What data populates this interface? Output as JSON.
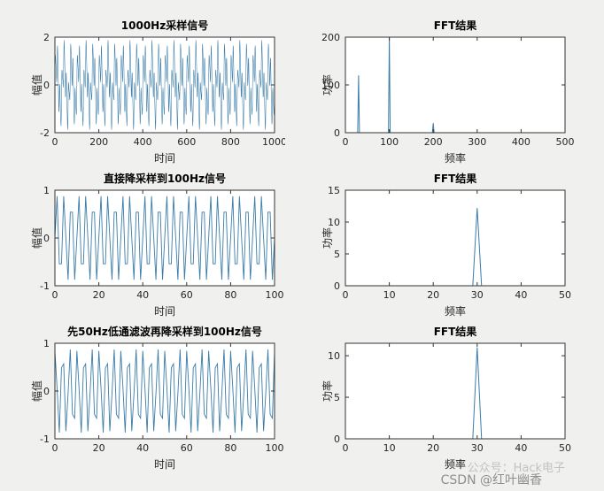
{
  "figure": {
    "background": "#f0f0ee",
    "plot_background": "#ffffff",
    "line_color": "#3a7ca8",
    "axis_color": "#333333",
    "tick_label_color": "#262626"
  },
  "watermark": {
    "line1": "公众号：Hack电子",
    "line2": "CSDN @红叶幽香"
  },
  "chart_data": [
    {
      "type": "line",
      "title": "1000Hz采样信号",
      "xlabel": "时间",
      "ylabel": "幅值",
      "xlim": [
        0,
        1000
      ],
      "ylim": [
        -2,
        2
      ],
      "xticks": [
        0,
        200,
        400,
        600,
        800,
        1000
      ],
      "yticks": [
        -2,
        0,
        2
      ],
      "grid": false,
      "signal": {
        "fs": 1000,
        "n": 1001,
        "components": [
          {
            "freq": 30,
            "amp": 1.0,
            "phase": 0
          },
          {
            "freq": 100,
            "amp": 0.8,
            "phase": 0
          },
          {
            "freq": 200,
            "amp": 0.2,
            "phase": 0
          }
        ]
      }
    },
    {
      "type": "spikes",
      "title": "FFT结果",
      "xlabel": "频率",
      "ylabel": "功率",
      "xlim": [
        0,
        500
      ],
      "ylim": [
        0,
        200
      ],
      "xticks": [
        0,
        100,
        200,
        300,
        400,
        500
      ],
      "yticks": [
        0,
        100,
        200
      ],
      "grid": false,
      "spike_halfwidth": 2,
      "spikes": [
        {
          "x": 30,
          "power": 120
        },
        {
          "x": 100,
          "power": 200
        },
        {
          "x": 200,
          "power": 20
        }
      ]
    },
    {
      "type": "line",
      "title": "直接降采样到100Hz信号",
      "xlabel": "时间",
      "ylabel": "幅值",
      "xlim": [
        0,
        100
      ],
      "ylim": [
        -1,
        1
      ],
      "xticks": [
        0,
        20,
        40,
        60,
        80,
        100
      ],
      "yticks": [
        -1,
        0,
        1
      ],
      "grid": false,
      "signal": {
        "fs": 100,
        "n": 101,
        "components": [
          {
            "freq": 30,
            "amp": 0.92,
            "phase": 0
          }
        ]
      }
    },
    {
      "type": "spikes",
      "title": "FFT结果",
      "xlabel": "频率",
      "ylabel": "功率",
      "xlim": [
        0,
        50
      ],
      "ylim": [
        0,
        15
      ],
      "xticks": [
        0,
        10,
        20,
        30,
        40,
        50
      ],
      "yticks": [
        0,
        5,
        10,
        15
      ],
      "grid": false,
      "spike_halfwidth": 1,
      "spikes": [
        {
          "x": 30,
          "power": 12.2
        }
      ]
    },
    {
      "type": "line",
      "title": "先50Hz低通滤波再降采样到100Hz信号",
      "xlabel": "时间",
      "ylabel": "幅值",
      "xlim": [
        0,
        100
      ],
      "ylim": [
        -1,
        1
      ],
      "xticks": [
        0,
        20,
        40,
        60,
        80,
        100
      ],
      "yticks": [
        -1,
        0,
        1
      ],
      "grid": false,
      "signal": {
        "fs": 100,
        "n": 101,
        "components": [
          {
            "freq": 30,
            "amp": 0.9,
            "phase": 1.2
          }
        ]
      }
    },
    {
      "type": "spikes",
      "title": "FFT结果",
      "xlabel": "频率",
      "ylabel": "功率",
      "xlim": [
        0,
        50
      ],
      "ylim": [
        0,
        11.5
      ],
      "xticks": [
        0,
        10,
        20,
        30,
        40,
        50
      ],
      "yticks": [
        0,
        5,
        10
      ],
      "grid": false,
      "spike_halfwidth": 1,
      "spikes": [
        {
          "x": 30,
          "power": 11
        }
      ]
    }
  ]
}
